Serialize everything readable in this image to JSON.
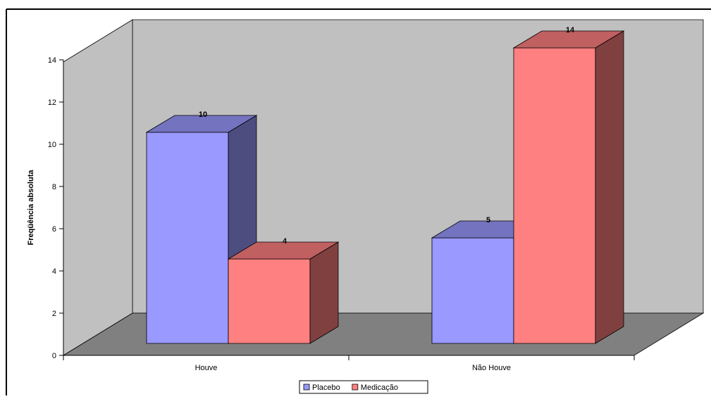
{
  "chart_data": {
    "type": "bar",
    "style": "3d-clustered-column",
    "title": "",
    "xlabel": "",
    "ylabel": "Freqüência absoluta",
    "categories": [
      "Houve",
      "Não Houve"
    ],
    "series": [
      {
        "name": "Placebo",
        "values": [
          10,
          5
        ],
        "color": "#9999ff",
        "top_color": "#7373c0",
        "side_color": "#4d4d80"
      },
      {
        "name": "Medicação",
        "values": [
          4,
          14
        ],
        "color": "#ff8080",
        "top_color": "#c06060",
        "side_color": "#804040"
      }
    ],
    "ylim": [
      0,
      14
    ],
    "yticks": [
      "0",
      "2",
      "4",
      "6",
      "8",
      "10",
      "12",
      "14"
    ],
    "grid": false,
    "legend": "bottom-center",
    "wall_color": "#c0c0c0",
    "floor_color": "#808080"
  }
}
